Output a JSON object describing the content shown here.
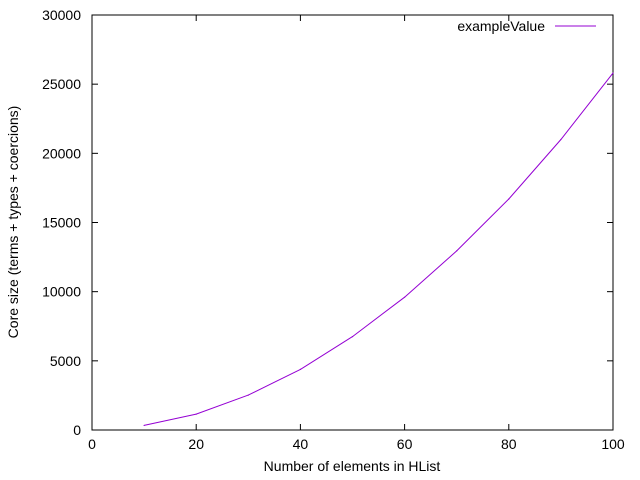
{
  "chart_data": {
    "type": "line",
    "title": "",
    "xlabel": "Number of elements in HList",
    "ylabel": "Core size (terms + types + coercions)",
    "xlim": [
      0,
      100
    ],
    "ylim": [
      0,
      30000
    ],
    "xticks": [
      "0",
      "20",
      "40",
      "60",
      "80",
      "100"
    ],
    "yticks": [
      "0",
      "5000",
      "10000",
      "15000",
      "20000",
      "25000",
      "30000"
    ],
    "grid": false,
    "legend_position": "top-right",
    "series": [
      {
        "name": "exampleValue",
        "color": "#9400d3",
        "x": [
          10,
          20,
          30,
          40,
          50,
          60,
          70,
          80,
          90,
          100
        ],
        "y": [
          330,
          1150,
          2520,
          4380,
          6750,
          9600,
          12950,
          16700,
          21000,
          25800
        ]
      }
    ]
  }
}
